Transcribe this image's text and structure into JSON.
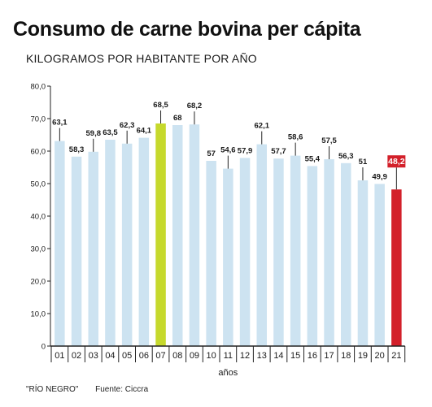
{
  "chart_data": {
    "type": "bar",
    "title": "Consumo de carne bovina per cápita",
    "subtitle": "KILOGRAMOS POR HABITANTE POR AÑO",
    "xlabel": "años",
    "ylabel": "",
    "ylim": [
      0,
      80
    ],
    "yticks": [
      0,
      10,
      20,
      30,
      40,
      50,
      60,
      70,
      80
    ],
    "ytick_labels": [
      "0",
      "10,0",
      "20,0",
      "30,0",
      "40,0",
      "50,0",
      "60,0",
      "70,0",
      "80,0"
    ],
    "grid": false,
    "categories": [
      "01",
      "02",
      "03",
      "04",
      "05",
      "06",
      "07",
      "08",
      "09",
      "10",
      "11",
      "12",
      "13",
      "14",
      "15",
      "16",
      "17",
      "18",
      "19",
      "20",
      "21"
    ],
    "values": [
      63.1,
      58.3,
      59.8,
      63.5,
      62.3,
      64.1,
      68.5,
      68,
      68.2,
      57,
      54.6,
      57.9,
      62.1,
      57.7,
      58.6,
      55.4,
      57.5,
      56.3,
      51,
      49.9,
      48.2
    ],
    "value_labels": [
      "63,1",
      "58,3",
      "59,8",
      "63,5",
      "62,3",
      "64,1",
      "68,5",
      "68",
      "68,2",
      "57",
      "54,6",
      "57,9",
      "62,1",
      "57,7",
      "58,6",
      "55,4",
      "57,5",
      "56,3",
      "51",
      "49,9",
      "48,2"
    ],
    "colors": {
      "default": "#cde3f1",
      "highlight_max": "#c6d92c",
      "highlight_last": "#d3202a",
      "axis": "#222222",
      "text": "#1a1a1a"
    },
    "highlight_max_index": 6,
    "highlight_last_index": 20
  },
  "footer": {
    "source_outlet": "\"RÍO NEGRO\"",
    "source": "Fuente: Ciccra"
  }
}
